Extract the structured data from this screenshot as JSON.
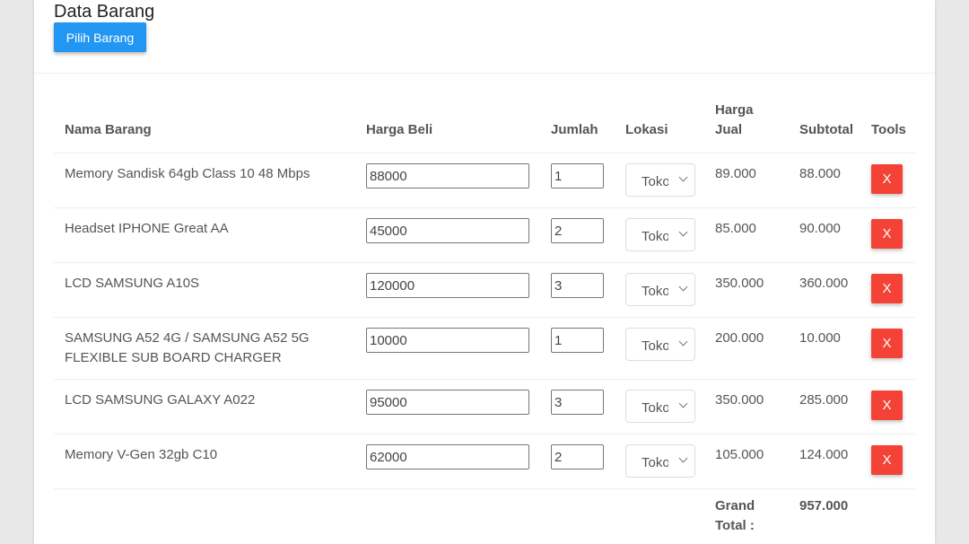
{
  "header": {
    "title": "Data Barang",
    "pick_button": "Pilih Barang"
  },
  "table": {
    "columns": [
      "Nama Barang",
      "Harga Beli",
      "Jumlah",
      "Lokasi",
      "Harga Jual",
      "Subtotal",
      "Tools"
    ],
    "rows": [
      {
        "name": "Memory Sandisk 64gb Class 10 48 Mbps",
        "harga_beli": "88000",
        "jumlah": "1",
        "lokasi": "Toko",
        "harga_jual": "89.000",
        "subtotal": "88.000",
        "delete": "X"
      },
      {
        "name": "Headset IPHONE Great AA",
        "harga_beli": "45000",
        "jumlah": "2",
        "lokasi": "Toko",
        "harga_jual": "85.000",
        "subtotal": "90.000",
        "delete": "X"
      },
      {
        "name": "LCD SAMSUNG A10S",
        "harga_beli": "120000",
        "jumlah": "3",
        "lokasi": "Toko",
        "harga_jual": "350.000",
        "subtotal": "360.000",
        "delete": "X"
      },
      {
        "name": "SAMSUNG A52 4G / SAMSUNG A52 5G FLEXIBLE SUB BOARD CHARGER",
        "harga_beli": "10000",
        "jumlah": "1",
        "lokasi": "Toko",
        "harga_jual": "200.000",
        "subtotal": "10.000",
        "delete": "X"
      },
      {
        "name": "LCD SAMSUNG GALAXY A022",
        "harga_beli": "95000",
        "jumlah": "3",
        "lokasi": "Toko",
        "harga_jual": "350.000",
        "subtotal": "285.000",
        "delete": "X"
      },
      {
        "name": "Memory V-Gen 32gb C10",
        "harga_beli": "62000",
        "jumlah": "2",
        "lokasi": "Toko",
        "harga_jual": "105.000",
        "subtotal": "124.000",
        "delete": "X"
      }
    ],
    "grand_total_label": "Grand Total :",
    "grand_total": "957.000"
  },
  "colors": {
    "primary": "#2196f3",
    "danger": "#f44336"
  }
}
